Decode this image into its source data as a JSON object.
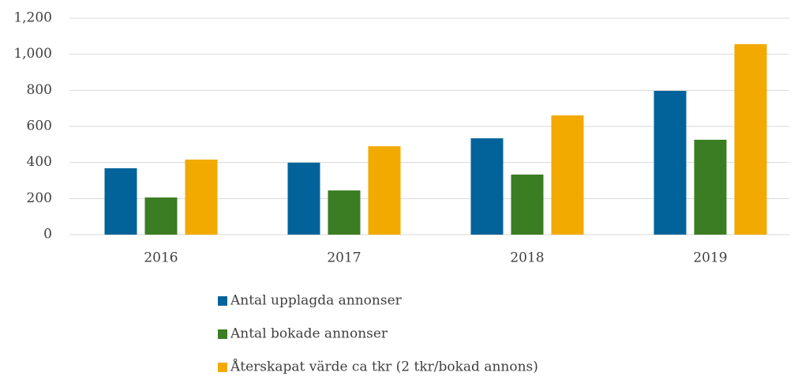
{
  "chart_data": {
    "type": "bar",
    "categories": [
      "2016",
      "2017",
      "2018",
      "2019"
    ],
    "series": [
      {
        "name": "Antal upplagda annonser",
        "color": "#02639b",
        "values": [
          368,
          399,
          534,
          797
        ]
      },
      {
        "name": "Antal bokade annonser",
        "color": "#3a7d22",
        "values": [
          206,
          245,
          333,
          526
        ]
      },
      {
        "name": "Återskapat värde ca tkr (2 tkr/bokad annons)",
        "color": "#f2a900",
        "values": [
          416,
          490,
          661,
          1056
        ]
      }
    ],
    "ylim": [
      0,
      1200
    ],
    "yticks": [
      0,
      200,
      400,
      600,
      800,
      {
        "value": 1000,
        "label": "1,000"
      },
      {
        "value": 1200,
        "label": "1,200"
      }
    ],
    "grid": true,
    "legend": "bottom"
  }
}
